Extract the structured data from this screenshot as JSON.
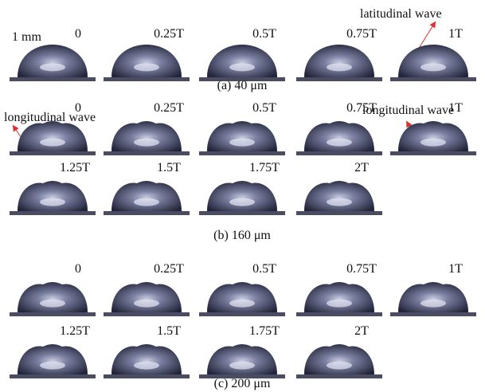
{
  "panels": [
    {
      "caption": "(a) 40 μm",
      "rows": [
        [
          "0",
          "0.25T",
          "0.5T",
          "0.75T",
          "1T"
        ]
      ]
    },
    {
      "caption": "(b) 160 μm",
      "rows": [
        [
          "0",
          "0.25T",
          "0.5T",
          "0.75T",
          "1T"
        ],
        [
          "1.25T",
          "1.5T",
          "1.75T",
          "2T"
        ]
      ]
    },
    {
      "caption": "(c) 200 μm",
      "rows": [
        [
          "0",
          "0.25T",
          "0.5T",
          "0.75T",
          "1T"
        ],
        [
          "1.25T",
          "1.5T",
          "1.75T",
          "2T"
        ]
      ]
    }
  ],
  "annotations": {
    "scale": "1 mm",
    "latitudinal": "latitudinal wave",
    "longitudinal_left": "longitudinal wave",
    "longitudinal_right": "longitudinal wave"
  }
}
